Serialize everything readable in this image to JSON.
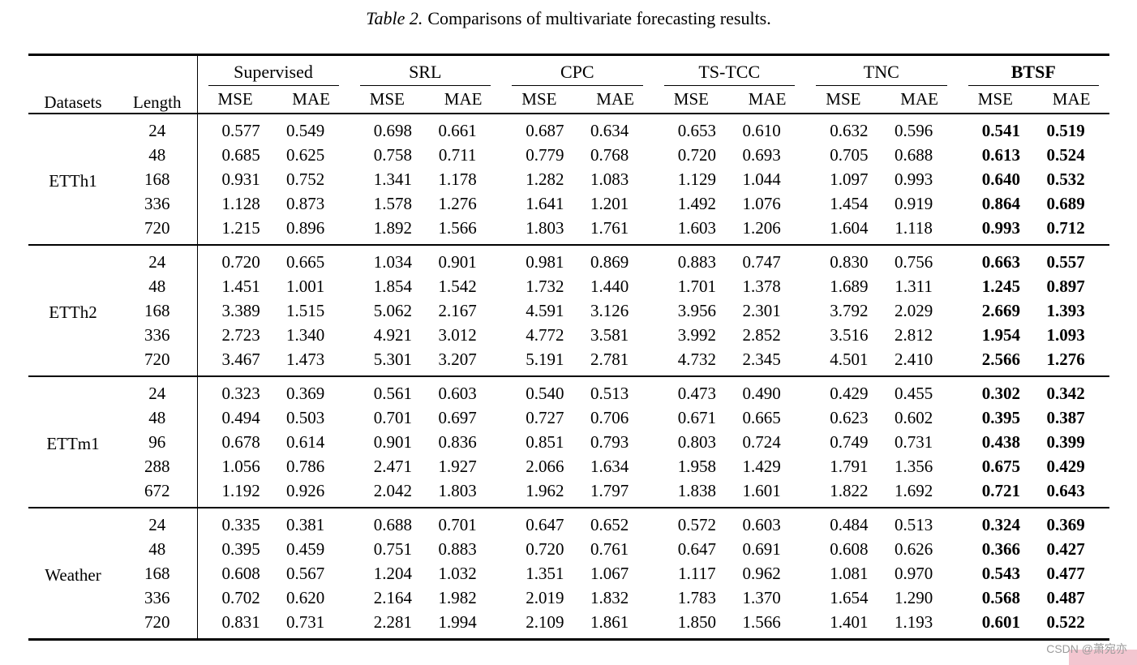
{
  "caption": {
    "label": "Table 2.",
    "text": "Comparisons of multivariate forecasting results."
  },
  "table": {
    "col_headers": {
      "datasets": "Datasets",
      "length": "Length"
    },
    "metric_headers": [
      "MSE",
      "MAE"
    ],
    "methods": [
      "Supervised",
      "SRL",
      "CPC",
      "TS-TCC",
      "TNC",
      "BTSF"
    ],
    "blocks": [
      {
        "dataset": "ETTh1",
        "rows": [
          {
            "length": "24",
            "values": [
              "0.577",
              "0.549",
              "0.698",
              "0.661",
              "0.687",
              "0.634",
              "0.653",
              "0.610",
              "0.632",
              "0.596",
              "0.541",
              "0.519"
            ]
          },
          {
            "length": "48",
            "values": [
              "0.685",
              "0.625",
              "0.758",
              "0.711",
              "0.779",
              "0.768",
              "0.720",
              "0.693",
              "0.705",
              "0.688",
              "0.613",
              "0.524"
            ]
          },
          {
            "length": "168",
            "values": [
              "0.931",
              "0.752",
              "1.341",
              "1.178",
              "1.282",
              "1.083",
              "1.129",
              "1.044",
              "1.097",
              "0.993",
              "0.640",
              "0.532"
            ]
          },
          {
            "length": "336",
            "values": [
              "1.128",
              "0.873",
              "1.578",
              "1.276",
              "1.641",
              "1.201",
              "1.492",
              "1.076",
              "1.454",
              "0.919",
              "0.864",
              "0.689"
            ]
          },
          {
            "length": "720",
            "values": [
              "1.215",
              "0.896",
              "1.892",
              "1.566",
              "1.803",
              "1.761",
              "1.603",
              "1.206",
              "1.604",
              "1.118",
              "0.993",
              "0.712"
            ]
          }
        ]
      },
      {
        "dataset": "ETTh2",
        "rows": [
          {
            "length": "24",
            "values": [
              "0.720",
              "0.665",
              "1.034",
              "0.901",
              "0.981",
              "0.869",
              "0.883",
              "0.747",
              "0.830",
              "0.756",
              "0.663",
              "0.557"
            ]
          },
          {
            "length": "48",
            "values": [
              "1.451",
              "1.001",
              "1.854",
              "1.542",
              "1.732",
              "1.440",
              "1.701",
              "1.378",
              "1.689",
              "1.311",
              "1.245",
              "0.897"
            ]
          },
          {
            "length": "168",
            "values": [
              "3.389",
              "1.515",
              "5.062",
              "2.167",
              "4.591",
              "3.126",
              "3.956",
              "2.301",
              "3.792",
              "2.029",
              "2.669",
              "1.393"
            ]
          },
          {
            "length": "336",
            "values": [
              "2.723",
              "1.340",
              "4.921",
              "3.012",
              "4.772",
              "3.581",
              "3.992",
              "2.852",
              "3.516",
              "2.812",
              "1.954",
              "1.093"
            ]
          },
          {
            "length": "720",
            "values": [
              "3.467",
              "1.473",
              "5.301",
              "3.207",
              "5.191",
              "2.781",
              "4.732",
              "2.345",
              "4.501",
              "2.410",
              "2.566",
              "1.276"
            ]
          }
        ]
      },
      {
        "dataset": "ETTm1",
        "rows": [
          {
            "length": "24",
            "values": [
              "0.323",
              "0.369",
              "0.561",
              "0.603",
              "0.540",
              "0.513",
              "0.473",
              "0.490",
              "0.429",
              "0.455",
              "0.302",
              "0.342"
            ]
          },
          {
            "length": "48",
            "values": [
              "0.494",
              "0.503",
              "0.701",
              "0.697",
              "0.727",
              "0.706",
              "0.671",
              "0.665",
              "0.623",
              "0.602",
              "0.395",
              "0.387"
            ]
          },
          {
            "length": "96",
            "values": [
              "0.678",
              "0.614",
              "0.901",
              "0.836",
              "0.851",
              "0.793",
              "0.803",
              "0.724",
              "0.749",
              "0.731",
              "0.438",
              "0.399"
            ]
          },
          {
            "length": "288",
            "values": [
              "1.056",
              "0.786",
              "2.471",
              "1.927",
              "2.066",
              "1.634",
              "1.958",
              "1.429",
              "1.791",
              "1.356",
              "0.675",
              "0.429"
            ]
          },
          {
            "length": "672",
            "values": [
              "1.192",
              "0.926",
              "2.042",
              "1.803",
              "1.962",
              "1.797",
              "1.838",
              "1.601",
              "1.822",
              "1.692",
              "0.721",
              "0.643"
            ]
          }
        ]
      },
      {
        "dataset": "Weather",
        "rows": [
          {
            "length": "24",
            "values": [
              "0.335",
              "0.381",
              "0.688",
              "0.701",
              "0.647",
              "0.652",
              "0.572",
              "0.603",
              "0.484",
              "0.513",
              "0.324",
              "0.369"
            ]
          },
          {
            "length": "48",
            "values": [
              "0.395",
              "0.459",
              "0.751",
              "0.883",
              "0.720",
              "0.761",
              "0.647",
              "0.691",
              "0.608",
              "0.626",
              "0.366",
              "0.427"
            ]
          },
          {
            "length": "168",
            "values": [
              "0.608",
              "0.567",
              "1.204",
              "1.032",
              "1.351",
              "1.067",
              "1.117",
              "0.962",
              "1.081",
              "0.970",
              "0.543",
              "0.477"
            ]
          },
          {
            "length": "336",
            "values": [
              "0.702",
              "0.620",
              "2.164",
              "1.982",
              "2.019",
              "1.832",
              "1.783",
              "1.370",
              "1.654",
              "1.290",
              "0.568",
              "0.487"
            ]
          },
          {
            "length": "720",
            "values": [
              "0.831",
              "0.731",
              "2.281",
              "1.994",
              "2.109",
              "1.861",
              "1.850",
              "1.566",
              "1.401",
              "1.193",
              "0.601",
              "0.522"
            ]
          }
        ]
      }
    ]
  },
  "watermark": {
    "text": "CSDN @萧宛亦",
    "text_color": "#9b9b9b",
    "highlight_color": "#f3c6d0"
  }
}
